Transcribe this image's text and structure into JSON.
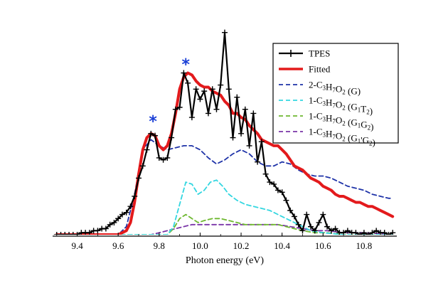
{
  "chart_data": {
    "type": "line",
    "xlabel": "Photon energy (eV)",
    "ylabel": "",
    "xlim": [
      9.28,
      10.96
    ],
    "ylim": [
      0.0,
      1.02
    ],
    "xticks": [
      9.4,
      9.6,
      9.8,
      10.0,
      10.2,
      10.4,
      10.6,
      10.8
    ],
    "xtick_labels": [
      "9.4",
      "9.6",
      "9.8",
      "10.0",
      "10.2",
      "10.4",
      "10.6",
      "10.8"
    ],
    "grid": false,
    "legend_position": "top-right",
    "annotations": [
      {
        "text": "*",
        "x": 9.77,
        "y": 0.5,
        "color": "#1a3fd6"
      },
      {
        "text": "*",
        "x": 9.93,
        "y": 0.78,
        "color": "#1a3fd6"
      }
    ],
    "series": [
      {
        "name": "TPES",
        "legend": {
          "main": "TPES"
        },
        "color": "#000000",
        "width": 2.2,
        "dash": "",
        "marker": "plus",
        "x": [
          9.3,
          9.32,
          9.34,
          9.36,
          9.38,
          9.4,
          9.42,
          9.44,
          9.46,
          9.48,
          9.5,
          9.52,
          9.54,
          9.56,
          9.58,
          9.6,
          9.62,
          9.64,
          9.66,
          9.68,
          9.7,
          9.72,
          9.74,
          9.76,
          9.78,
          9.8,
          9.82,
          9.84,
          9.86,
          9.88,
          9.9,
          9.92,
          9.94,
          9.96,
          9.98,
          10.0,
          10.02,
          10.04,
          10.06,
          10.08,
          10.1,
          10.12,
          10.14,
          10.16,
          10.18,
          10.2,
          10.22,
          10.24,
          10.26,
          10.28,
          10.3,
          10.32,
          10.34,
          10.36,
          10.38,
          10.4,
          10.42,
          10.44,
          10.46,
          10.48,
          10.5,
          10.52,
          10.54,
          10.56,
          10.58,
          10.6,
          10.62,
          10.64,
          10.66,
          10.68,
          10.7,
          10.72,
          10.74,
          10.76,
          10.78,
          10.8,
          10.82,
          10.84,
          10.86,
          10.88,
          10.9,
          10.92,
          10.94
        ],
        "y": [
          0.0,
          0.0,
          0.0,
          0.0,
          0.0,
          0.0,
          0.01,
          0.01,
          0.01,
          0.02,
          0.02,
          0.03,
          0.03,
          0.05,
          0.06,
          0.08,
          0.1,
          0.11,
          0.14,
          0.19,
          0.28,
          0.34,
          0.42,
          0.5,
          0.49,
          0.38,
          0.37,
          0.38,
          0.48,
          0.62,
          0.63,
          0.8,
          0.75,
          0.58,
          0.72,
          0.67,
          0.71,
          0.6,
          0.72,
          0.62,
          0.74,
          1.0,
          0.72,
          0.48,
          0.68,
          0.5,
          0.62,
          0.44,
          0.6,
          0.36,
          0.46,
          0.3,
          0.26,
          0.25,
          0.22,
          0.21,
          0.17,
          0.12,
          0.09,
          0.05,
          0.02,
          0.1,
          0.04,
          0.02,
          0.06,
          0.1,
          0.04,
          0.02,
          0.03,
          0.01,
          0.01,
          0.02,
          0.01,
          0.01,
          0.0,
          0.01,
          0.0,
          0.01,
          0.02,
          0.01,
          0.01,
          0.0,
          0.01
        ]
      },
      {
        "name": "Fitted",
        "legend": {
          "main": "Fitted"
        },
        "color": "#e31a1c",
        "width": 4,
        "dash": "",
        "marker": "",
        "x": [
          9.3,
          9.6,
          9.64,
          9.66,
          9.68,
          9.7,
          9.72,
          9.74,
          9.76,
          9.78,
          9.8,
          9.82,
          9.84,
          9.86,
          9.88,
          9.9,
          9.92,
          9.94,
          9.96,
          9.98,
          10.0,
          10.02,
          10.04,
          10.06,
          10.08,
          10.1,
          10.12,
          10.14,
          10.16,
          10.18,
          10.2,
          10.22,
          10.24,
          10.26,
          10.28,
          10.3,
          10.32,
          10.34,
          10.36,
          10.38,
          10.4,
          10.42,
          10.44,
          10.46,
          10.48,
          10.5,
          10.52,
          10.54,
          10.56,
          10.58,
          10.6,
          10.62,
          10.64,
          10.66,
          10.68,
          10.7,
          10.72,
          10.74,
          10.76,
          10.78,
          10.8,
          10.82,
          10.84,
          10.86,
          10.88,
          10.9,
          10.92,
          10.94
        ],
        "y": [
          0.0,
          0.0,
          0.02,
          0.06,
          0.16,
          0.3,
          0.42,
          0.48,
          0.5,
          0.49,
          0.44,
          0.42,
          0.44,
          0.5,
          0.6,
          0.72,
          0.78,
          0.8,
          0.79,
          0.76,
          0.74,
          0.73,
          0.73,
          0.71,
          0.7,
          0.69,
          0.66,
          0.64,
          0.6,
          0.6,
          0.58,
          0.57,
          0.54,
          0.52,
          0.5,
          0.47,
          0.46,
          0.45,
          0.44,
          0.44,
          0.42,
          0.4,
          0.37,
          0.34,
          0.33,
          0.32,
          0.3,
          0.28,
          0.27,
          0.26,
          0.24,
          0.23,
          0.22,
          0.2,
          0.19,
          0.19,
          0.18,
          0.17,
          0.16,
          0.16,
          0.15,
          0.14,
          0.14,
          0.13,
          0.12,
          0.11,
          0.1,
          0.09
        ]
      },
      {
        "name": "2-C3H7O2 (G)",
        "legend": {
          "main": "2-C",
          "sub1": "3",
          "mid1": "H",
          "sub2": "7",
          "mid2": "O",
          "sub3": "2",
          "tail": " (G)"
        },
        "color": "#1f33a8",
        "width": 1.8,
        "dash": "6,4",
        "marker": "",
        "x": [
          9.3,
          9.6,
          9.64,
          9.68,
          9.72,
          9.76,
          9.8,
          9.84,
          9.88,
          9.92,
          9.96,
          10.0,
          10.04,
          10.08,
          10.12,
          10.16,
          10.2,
          10.24,
          10.28,
          10.32,
          10.36,
          10.4,
          10.44,
          10.48,
          10.52,
          10.56,
          10.6,
          10.64,
          10.68,
          10.72,
          10.76,
          10.8,
          10.84,
          10.88,
          10.92,
          10.94
        ],
        "y": [
          0.0,
          0.0,
          0.04,
          0.2,
          0.42,
          0.47,
          0.44,
          0.42,
          0.43,
          0.44,
          0.44,
          0.42,
          0.38,
          0.35,
          0.37,
          0.4,
          0.42,
          0.4,
          0.36,
          0.34,
          0.34,
          0.36,
          0.35,
          0.32,
          0.3,
          0.29,
          0.29,
          0.28,
          0.26,
          0.24,
          0.23,
          0.22,
          0.2,
          0.19,
          0.18,
          0.18
        ]
      },
      {
        "name": "1-C3H7O2 (G1T2)",
        "legend": {
          "main": "1-C",
          "sub1": "3",
          "mid1": "H",
          "sub2": "7",
          "mid2": "O",
          "sub3": "2",
          "tail": " (G",
          "tsub1": "1",
          "tmid": "T",
          "tsub2": "2",
          "tend": ")"
        },
        "color": "#33d6e0",
        "width": 1.8,
        "dash": "6,4",
        "marker": "",
        "x": [
          9.3,
          9.84,
          9.87,
          9.9,
          9.93,
          9.96,
          9.99,
          10.02,
          10.05,
          10.08,
          10.11,
          10.14,
          10.18,
          10.22,
          10.26,
          10.3,
          10.34,
          10.38,
          10.42,
          10.46,
          10.5,
          10.54,
          10.6,
          10.7,
          10.8,
          10.94
        ],
        "y": [
          0.0,
          0.0,
          0.04,
          0.15,
          0.26,
          0.25,
          0.2,
          0.22,
          0.26,
          0.27,
          0.24,
          0.2,
          0.17,
          0.15,
          0.14,
          0.13,
          0.12,
          0.1,
          0.08,
          0.06,
          0.04,
          0.02,
          0.01,
          0.0,
          0.0,
          0.0
        ]
      },
      {
        "name": "1-C3H7O2 (G1G2)",
        "legend": {
          "main": "1-C",
          "sub1": "3",
          "mid1": "H",
          "sub2": "7",
          "mid2": "O",
          "sub3": "2",
          "tail": " (G",
          "tsub1": "1",
          "tmid": "G",
          "tsub2": "2",
          "tend": ")"
        },
        "color": "#6fb830",
        "width": 1.8,
        "dash": "6,4",
        "marker": "",
        "x": [
          9.3,
          9.84,
          9.87,
          9.9,
          9.93,
          9.96,
          9.99,
          10.02,
          10.06,
          10.1,
          10.14,
          10.18,
          10.22,
          10.26,
          10.3,
          10.34,
          10.38,
          10.42,
          10.46,
          10.5,
          10.56,
          10.62,
          10.7,
          10.8,
          10.94
        ],
        "y": [
          0.0,
          0.0,
          0.03,
          0.08,
          0.1,
          0.08,
          0.06,
          0.07,
          0.08,
          0.08,
          0.07,
          0.06,
          0.05,
          0.05,
          0.05,
          0.05,
          0.05,
          0.04,
          0.03,
          0.02,
          0.01,
          0.01,
          0.0,
          0.0,
          0.0
        ]
      },
      {
        "name": "1-C3H7O2 (G1'G2)",
        "legend": {
          "main": "1-C",
          "sub1": "3",
          "mid1": "H",
          "sub2": "7",
          "mid2": "O",
          "sub3": "2",
          "tail": " (G",
          "tsub1": "1",
          "tmid": "'G",
          "tsub2": "2",
          "tend": ")"
        },
        "color": "#7a35a8",
        "width": 1.8,
        "dash": "6,4",
        "marker": "",
        "x": [
          9.3,
          9.76,
          9.8,
          9.84,
          9.88,
          9.92,
          9.96,
          10.0,
          10.04,
          10.08,
          10.14,
          10.2,
          10.26,
          10.32,
          10.38,
          10.44,
          10.5,
          10.56,
          10.62,
          10.7,
          10.8,
          10.94
        ],
        "y": [
          0.0,
          0.0,
          0.01,
          0.02,
          0.03,
          0.04,
          0.05,
          0.05,
          0.05,
          0.05,
          0.05,
          0.05,
          0.05,
          0.05,
          0.05,
          0.04,
          0.03,
          0.02,
          0.02,
          0.01,
          0.01,
          0.0
        ]
      }
    ]
  }
}
